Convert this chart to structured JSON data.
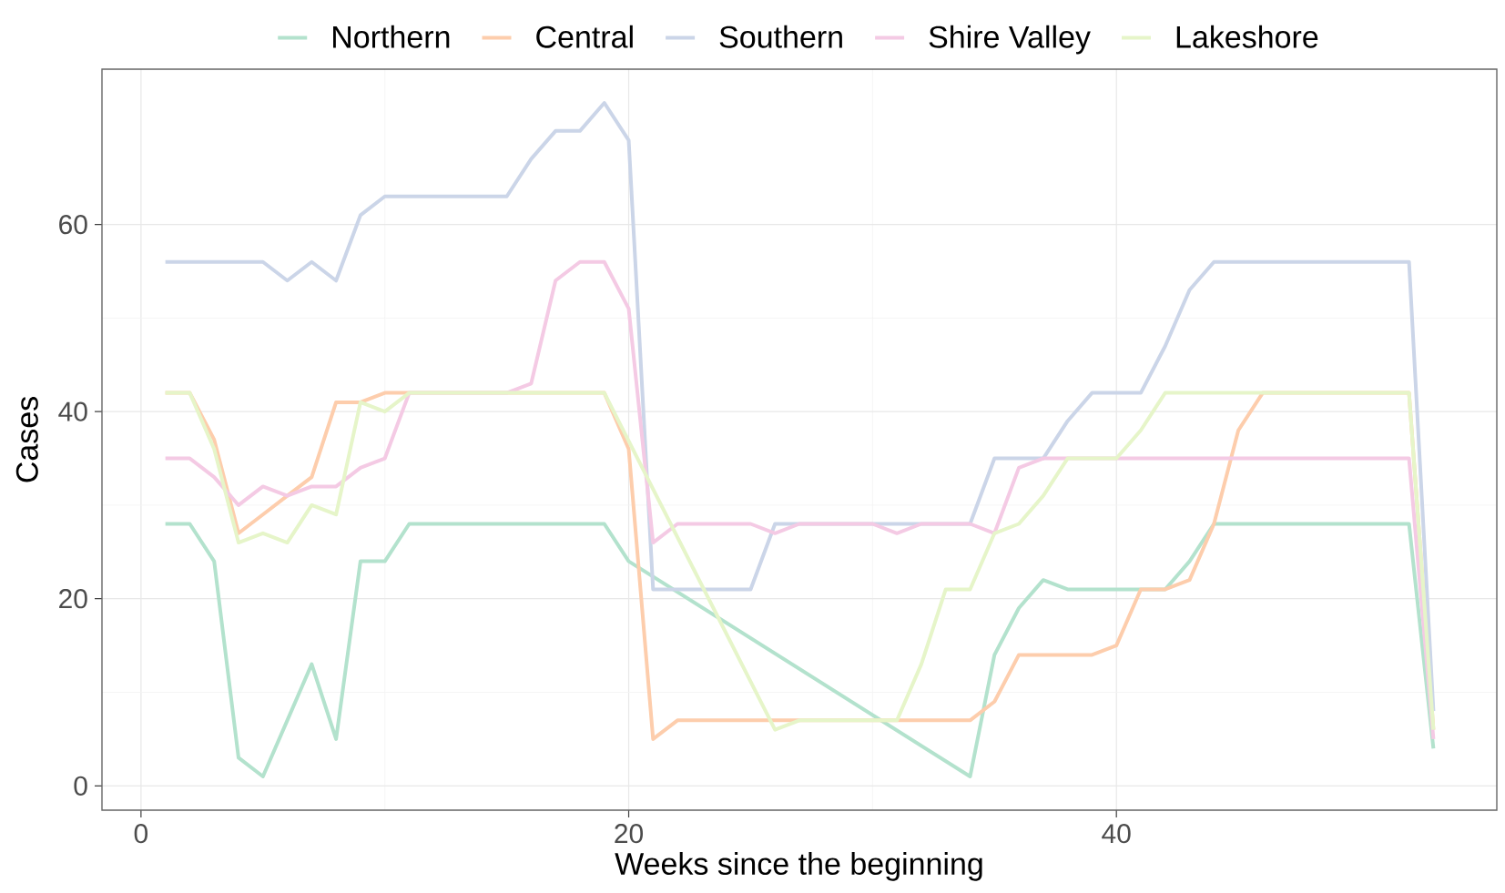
{
  "chart_data": {
    "type": "line",
    "xlabel": "Weeks since the beginning",
    "ylabel": "Cases",
    "x": [
      1,
      2,
      3,
      4,
      5,
      6,
      7,
      8,
      9,
      10,
      11,
      12,
      13,
      14,
      15,
      16,
      17,
      18,
      19,
      20,
      21,
      22,
      23,
      24,
      25,
      26,
      27,
      28,
      29,
      30,
      31,
      32,
      33,
      34,
      35,
      36,
      37,
      38,
      39,
      40,
      41,
      42,
      43,
      44,
      45,
      46,
      47,
      48,
      49,
      50,
      51,
      52,
      53
    ],
    "series": [
      {
        "name": "Northern",
        "color": "#b3e2cd",
        "x": [
          1,
          2,
          3,
          4,
          5,
          6,
          7,
          8,
          9,
          10,
          11,
          12,
          13,
          14,
          15,
          16,
          17,
          18,
          19,
          20,
          34,
          35,
          36,
          37,
          38,
          39,
          40,
          41,
          42,
          43,
          44,
          45,
          46,
          47,
          48,
          49,
          50,
          51,
          52,
          53
        ],
        "values": [
          28,
          28,
          24,
          3,
          1,
          7,
          13,
          5,
          24,
          24,
          28,
          28,
          28,
          28,
          28,
          28,
          28,
          28,
          28,
          24,
          1,
          14,
          19,
          22,
          21,
          21,
          21,
          21,
          21,
          24,
          28,
          28,
          28,
          28,
          28,
          28,
          28,
          28,
          28,
          4
        ]
      },
      {
        "name": "Central",
        "color": "#fdcdac",
        "values": [
          42,
          42,
          37,
          27,
          29,
          31,
          33,
          41,
          41,
          42,
          42,
          42,
          42,
          42,
          42,
          42,
          42,
          42,
          42,
          36,
          5,
          7,
          7,
          7,
          7,
          7,
          7,
          7,
          7,
          7,
          7,
          7,
          7,
          7,
          9,
          14,
          14,
          14,
          14,
          15,
          21,
          21,
          22,
          28,
          38,
          42,
          42,
          42,
          42,
          42,
          42,
          42,
          6
        ]
      },
      {
        "name": "Southern",
        "color": "#cbd5e8",
        "values": [
          56,
          56,
          56,
          56,
          56,
          54,
          56,
          54,
          61,
          63,
          63,
          63,
          63,
          63,
          63,
          67,
          70,
          70,
          73,
          69,
          21,
          21,
          21,
          21,
          21,
          28,
          28,
          28,
          28,
          28,
          28,
          28,
          28,
          28,
          35,
          35,
          35,
          39,
          42,
          42,
          42,
          47,
          53,
          56,
          56,
          56,
          56,
          56,
          56,
          56,
          56,
          56,
          8
        ]
      },
      {
        "name": "Shire Valley",
        "color": "#f4cae4",
        "values": [
          35,
          35,
          33,
          30,
          32,
          31,
          32,
          32,
          34,
          35,
          42,
          42,
          42,
          42,
          42,
          43,
          54,
          56,
          56,
          51,
          26,
          28,
          28,
          28,
          28,
          27,
          28,
          28,
          28,
          28,
          27,
          28,
          28,
          28,
          27,
          34,
          35,
          35,
          35,
          35,
          35,
          35,
          35,
          35,
          35,
          35,
          35,
          35,
          35,
          35,
          35,
          35,
          5
        ]
      },
      {
        "name": "Lakeshore",
        "color": "#e6f5c9",
        "x": [
          1,
          2,
          3,
          4,
          5,
          6,
          7,
          8,
          9,
          10,
          11,
          12,
          13,
          14,
          15,
          16,
          17,
          18,
          19,
          26,
          27,
          28,
          29,
          30,
          31,
          32,
          33,
          34,
          35,
          36,
          37,
          38,
          39,
          40,
          41,
          42,
          43,
          44,
          45,
          46,
          47,
          48,
          49,
          50,
          51,
          52,
          53
        ],
        "values": [
          42,
          42,
          36,
          26,
          27,
          26,
          30,
          29,
          41,
          40,
          42,
          42,
          42,
          42,
          42,
          42,
          42,
          42,
          42,
          6,
          7,
          7,
          7,
          7,
          7,
          13,
          21,
          21,
          27,
          28,
          31,
          35,
          35,
          35,
          38,
          42,
          42,
          42,
          42,
          42,
          42,
          42,
          42,
          42,
          42,
          42,
          6
        ]
      }
    ],
    "xlim": [
      -1.6,
      55.6
    ],
    "ylim": [
      -2.6,
      76.6
    ],
    "xticks": [
      0,
      20,
      40
    ],
    "yticks": [
      0,
      20,
      40,
      60
    ],
    "grid": true,
    "legend": "top",
    "marker": "none",
    "line_style": "solid"
  }
}
